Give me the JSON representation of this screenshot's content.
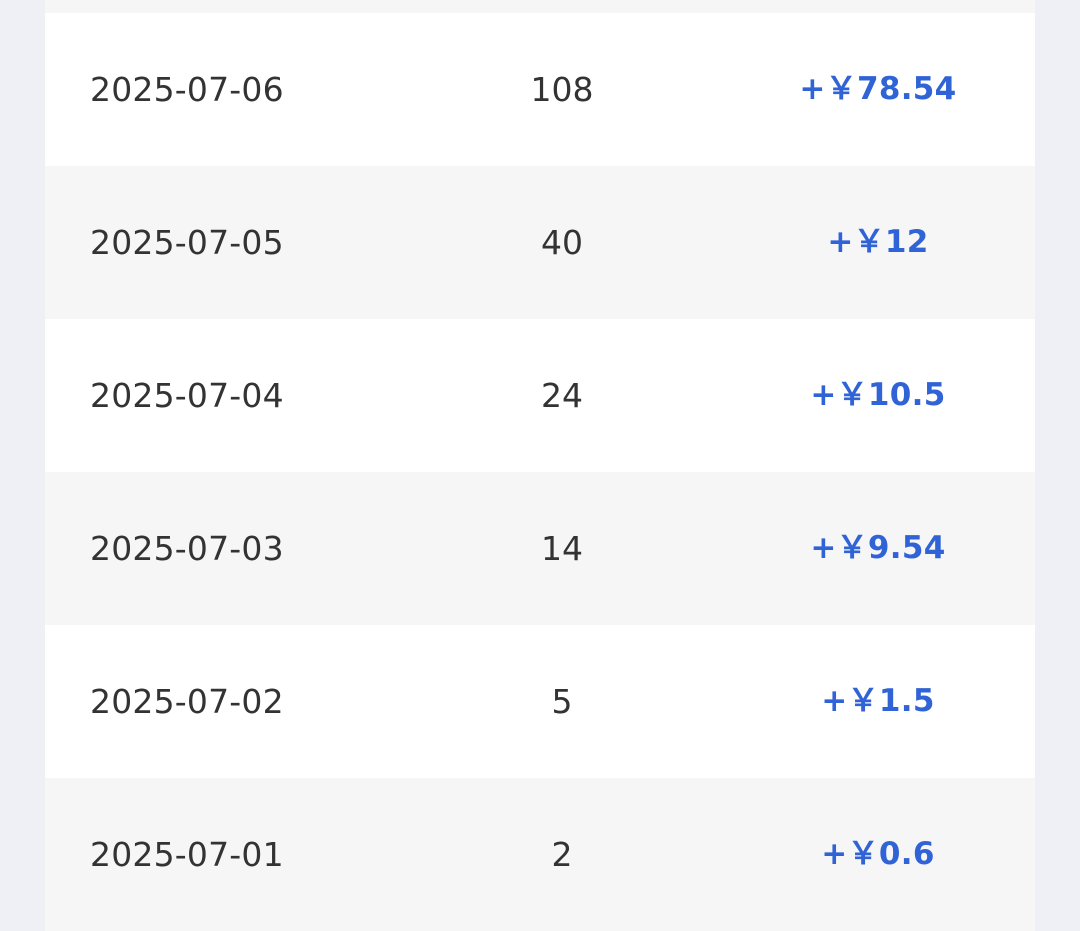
{
  "records": [
    {
      "date": "2025-07-06",
      "count": "108",
      "amount": "+￥78.54"
    },
    {
      "date": "2025-07-05",
      "count": "40",
      "amount": "+￥12"
    },
    {
      "date": "2025-07-04",
      "count": "24",
      "amount": "+￥10.5"
    },
    {
      "date": "2025-07-03",
      "count": "14",
      "amount": "+￥9.54"
    },
    {
      "date": "2025-07-02",
      "count": "5",
      "amount": "+￥1.5"
    },
    {
      "date": "2025-07-01",
      "count": "2",
      "amount": "+￥0.6"
    }
  ],
  "colors": {
    "page_background": "#eef0f5",
    "row_white": "#ffffff",
    "row_gray": "#f6f6f7",
    "text": "#333333",
    "amount": "#2f63d6"
  }
}
